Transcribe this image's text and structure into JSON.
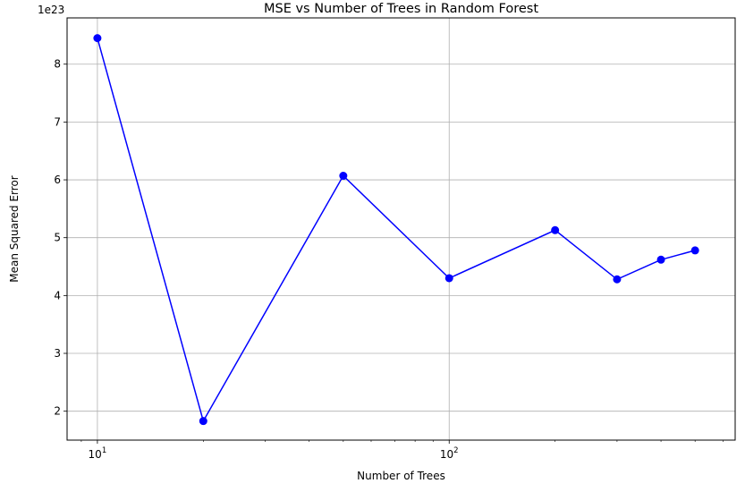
{
  "chart_data": {
    "type": "line",
    "title": "MSE vs Number of Trees in Random Forest",
    "xlabel": "Number of Trees",
    "ylabel": "Mean Squared Error",
    "x_scale": "log",
    "xlim": [
      8.2,
      650
    ],
    "ylim": [
      1.5,
      8.8
    ],
    "y_offset_label": "1e23",
    "x_ticks": [
      {
        "value": 10,
        "base": "10",
        "exp": "1"
      },
      {
        "value": 100,
        "base": "10",
        "exp": "2"
      }
    ],
    "y_ticks": [
      2,
      3,
      4,
      5,
      6,
      7,
      8
    ],
    "grid": true,
    "series": [
      {
        "color": "#0000ff",
        "marker": "circle",
        "x": [
          10,
          20,
          50,
          100,
          200,
          300,
          400,
          500
        ],
        "y": [
          8.45,
          1.83,
          6.07,
          4.3,
          5.13,
          4.28,
          4.62,
          4.78
        ]
      }
    ]
  }
}
